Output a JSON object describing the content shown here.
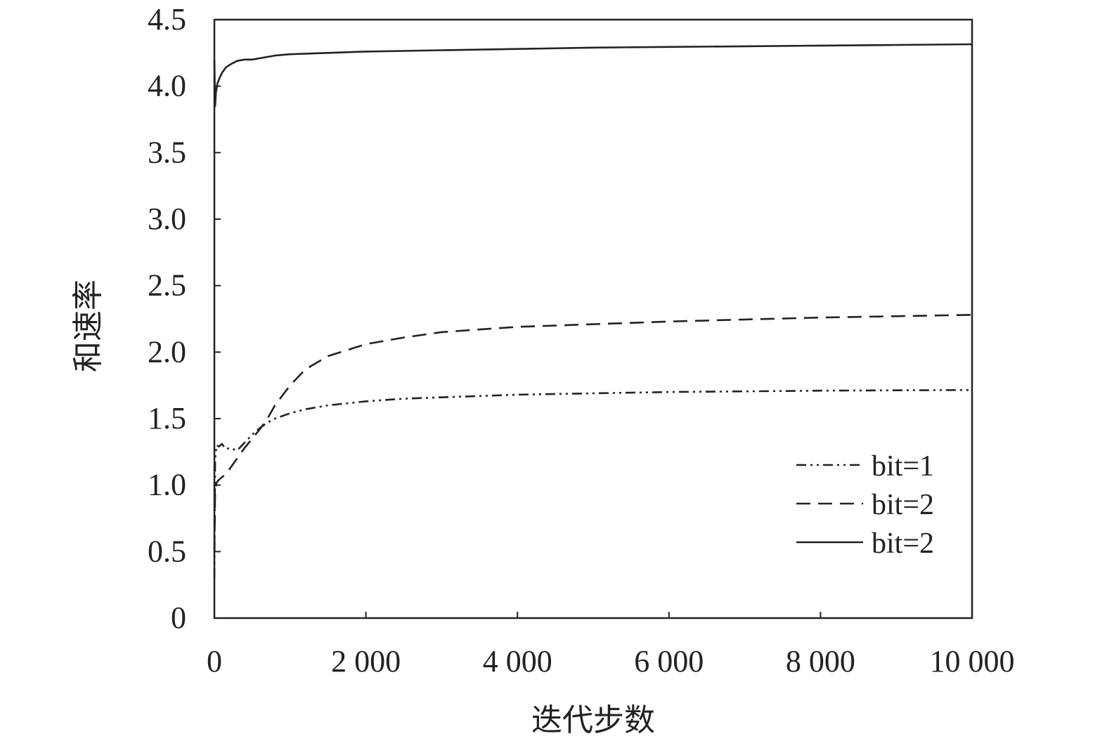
{
  "chart_data": {
    "type": "line",
    "title": "",
    "xlabel": "迭代步数",
    "ylabel": "和速率",
    "xlim": [
      0,
      10000
    ],
    "ylim": [
      0,
      4.5
    ],
    "x_ticks": [
      0,
      2000,
      4000,
      6000,
      8000,
      10000
    ],
    "x_tick_labels": [
      "0",
      "2 000",
      "4 000",
      "6 000",
      "8 000",
      "10 000"
    ],
    "y_ticks": [
      0,
      0.5,
      1.0,
      1.5,
      2.0,
      2.5,
      3.0,
      3.5,
      4.0,
      4.5
    ],
    "y_tick_labels": [
      "0",
      "0.5",
      "1.0",
      "1.5",
      "2.0",
      "2.5",
      "3.0",
      "3.5",
      "4.0",
      "4.5"
    ],
    "grid": false,
    "legend_position": "bottom-right",
    "series": [
      {
        "name": "bit=1",
        "style": "dash-dot",
        "x": [
          0,
          10,
          30,
          60,
          100,
          150,
          200,
          300,
          400,
          500,
          600,
          700,
          800,
          1000,
          1200,
          1500,
          2000,
          2500,
          3000,
          3500,
          4000,
          5000,
          6000,
          7000,
          8000,
          9000,
          10000
        ],
        "y": [
          0.3,
          1.2,
          1.3,
          1.29,
          1.31,
          1.27,
          1.28,
          1.26,
          1.32,
          1.38,
          1.43,
          1.47,
          1.5,
          1.54,
          1.57,
          1.6,
          1.63,
          1.65,
          1.66,
          1.67,
          1.68,
          1.69,
          1.7,
          1.705,
          1.71,
          1.713,
          1.715
        ]
      },
      {
        "name": "bit=2",
        "style": "dashed",
        "x": [
          0,
          10,
          30,
          60,
          100,
          150,
          200,
          300,
          400,
          500,
          600,
          700,
          800,
          1000,
          1200,
          1500,
          2000,
          2500,
          3000,
          3500,
          4000,
          5000,
          6000,
          7000,
          8000,
          9000,
          10000
        ],
        "y": [
          0.5,
          0.95,
          1.02,
          1.04,
          1.06,
          1.08,
          1.12,
          1.2,
          1.28,
          1.35,
          1.42,
          1.5,
          1.6,
          1.75,
          1.87,
          1.97,
          2.06,
          2.11,
          2.15,
          2.17,
          2.19,
          2.21,
          2.23,
          2.245,
          2.26,
          2.27,
          2.28
        ]
      },
      {
        "name": "bit=2",
        "style": "solid",
        "x": [
          0,
          10,
          20,
          40,
          60,
          100,
          150,
          200,
          300,
          400,
          500,
          600,
          700,
          800,
          1000,
          1500,
          2000,
          2500,
          3000,
          4000,
          5000,
          6000,
          7000,
          8000,
          9000,
          10000
        ],
        "y": [
          4.2,
          3.85,
          3.95,
          4.02,
          4.05,
          4.1,
          4.14,
          4.16,
          4.19,
          4.2,
          4.2,
          4.21,
          4.22,
          4.23,
          4.24,
          4.25,
          4.26,
          4.265,
          4.27,
          4.28,
          4.29,
          4.295,
          4.3,
          4.305,
          4.31,
          4.315
        ]
      }
    ]
  }
}
